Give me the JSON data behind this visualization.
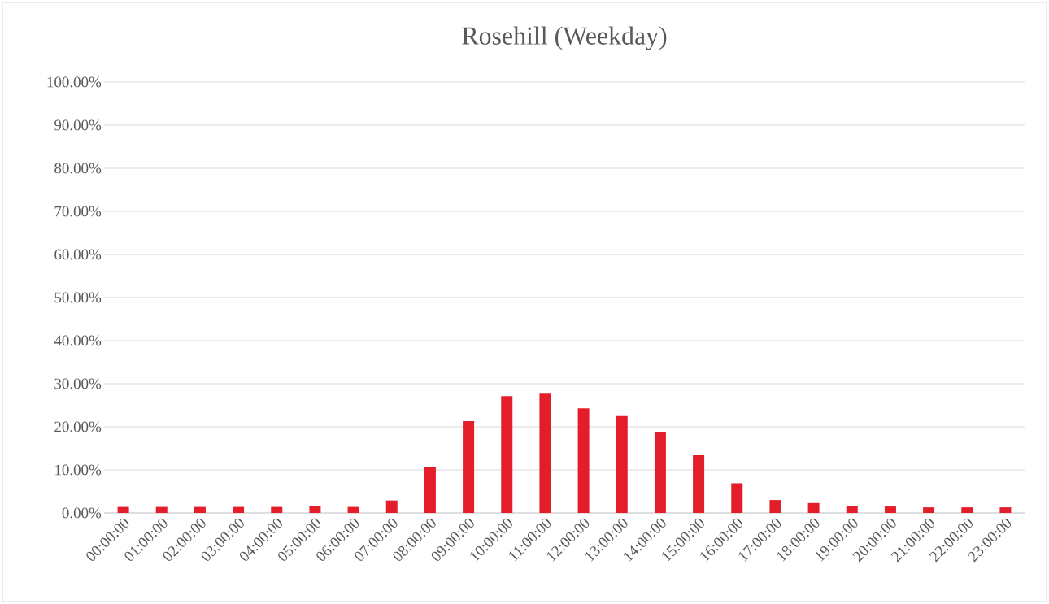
{
  "chart_data": {
    "type": "bar",
    "title": "Rosehill (Weekday)",
    "categories": [
      "00:00:00",
      "01:00:00",
      "02:00:00",
      "03:00:00",
      "04:00:00",
      "05:00:00",
      "06:00:00",
      "07:00:00",
      "08:00:00",
      "09:00:00",
      "10:00:00",
      "11:00:00",
      "12:00:00",
      "13:00:00",
      "14:00:00",
      "15:00:00",
      "16:00:00",
      "17:00:00",
      "18:00:00",
      "19:00:00",
      "20:00:00",
      "21:00:00",
      "22:00:00",
      "23:00:00"
    ],
    "values": [
      1.4,
      1.4,
      1.4,
      1.4,
      1.4,
      1.6,
      1.4,
      2.9,
      10.6,
      21.3,
      27.1,
      27.7,
      24.3,
      22.5,
      18.8,
      13.4,
      6.9,
      3.0,
      2.3,
      1.7,
      1.5,
      1.3,
      1.3,
      1.3
    ],
    "color": "#e31e2a",
    "ylim": [
      0,
      100
    ],
    "yticks": [
      {
        "value": 0,
        "label": "0.00%"
      },
      {
        "value": 10,
        "label": "10.00%"
      },
      {
        "value": 20,
        "label": "20.00%"
      },
      {
        "value": 30,
        "label": "30.00%"
      },
      {
        "value": 40,
        "label": "40.00%"
      },
      {
        "value": 50,
        "label": "50.00%"
      },
      {
        "value": 60,
        "label": "60.00%"
      },
      {
        "value": 70,
        "label": "70.00%"
      },
      {
        "value": 80,
        "label": "80.00%"
      },
      {
        "value": 90,
        "label": "90.00%"
      },
      {
        "value": 100,
        "label": "100.00%"
      }
    ],
    "grid": "y"
  }
}
